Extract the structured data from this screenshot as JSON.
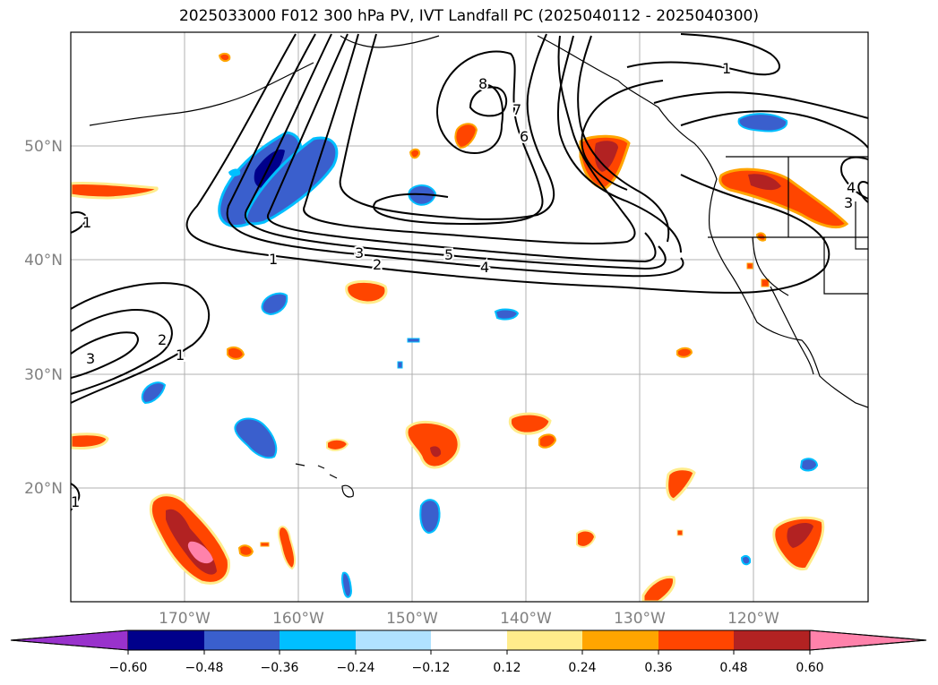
{
  "title": "2025033000 F012 300 hPa PV, IVT Landfall PC (2025040112 - 2025040300)",
  "map": {
    "lat_labels": [
      "50°N",
      "40°N",
      "30°N",
      "20°N"
    ],
    "lon_labels": [
      "170°W",
      "160°W",
      "150°W",
      "140°W",
      "130°W",
      "120°W"
    ],
    "gridlines": true
  },
  "colorbar": {
    "tick_labels": [
      "−0.60",
      "−0.48",
      "−0.36",
      "−0.24",
      "−0.12",
      "0.12",
      "0.24",
      "0.36",
      "0.48",
      "0.60"
    ],
    "colors": [
      "#9932cc",
      "#00008b",
      "#3a5fcd",
      "#00bfff",
      "#b0e2ff",
      "#ffffff",
      "#ffec8b",
      "#ffa500",
      "#ff4500",
      "#b22222",
      "#ff82ab"
    ],
    "extend": "both"
  },
  "contour_labels": [
    "1",
    "1",
    "1",
    "1",
    "2",
    "2",
    "3",
    "3",
    "4",
    "5",
    "6",
    "7",
    "8",
    "1",
    "3",
    "4"
  ]
}
